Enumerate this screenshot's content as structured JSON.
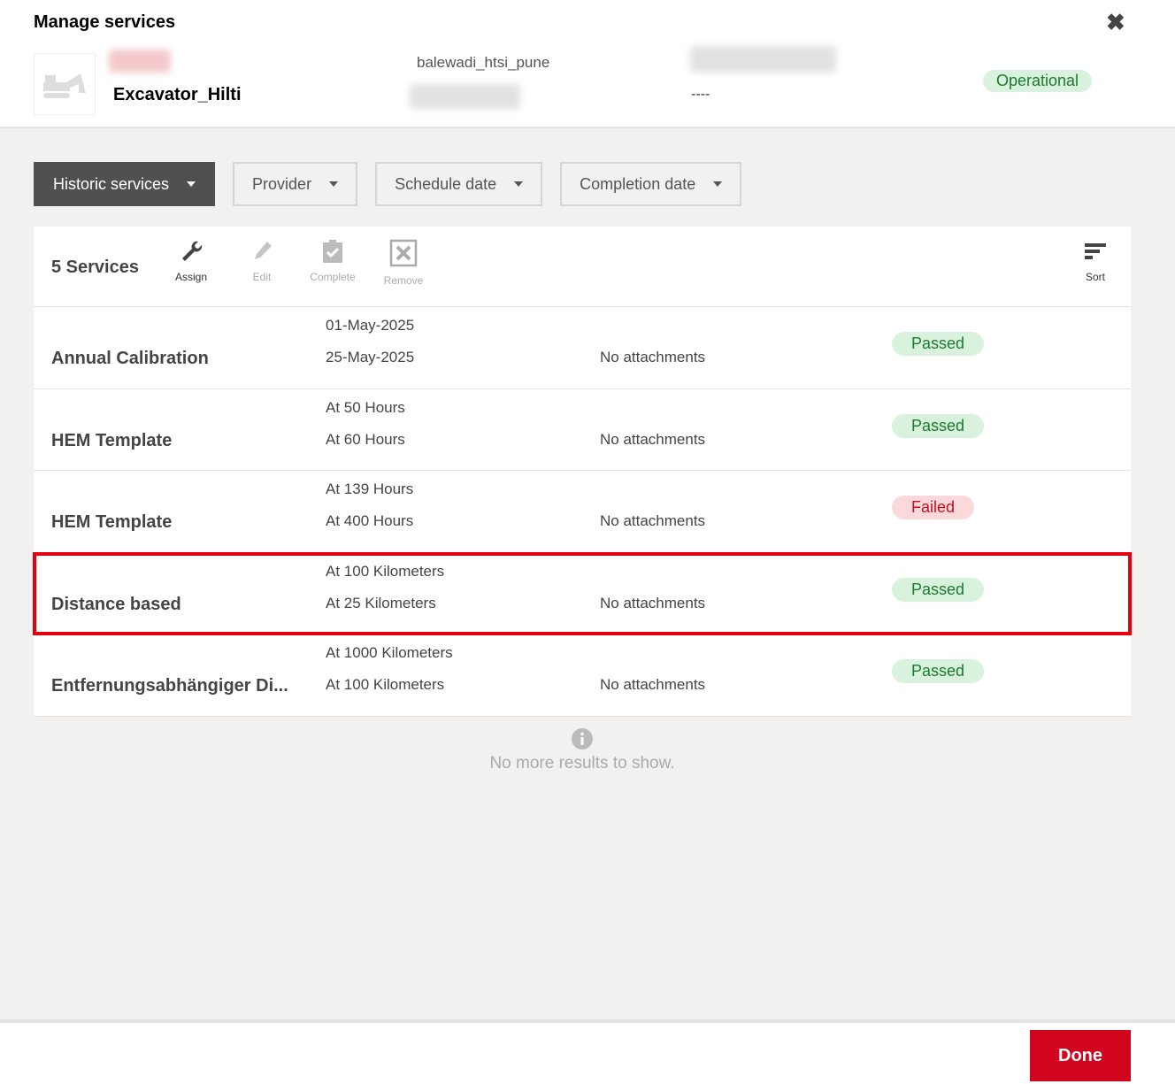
{
  "header": {
    "title": "Manage services",
    "asset_name": "Excavator_Hilti",
    "location": "balewadi_htsi_pune",
    "placeholder_value": "----",
    "status": "Operational"
  },
  "filters": [
    {
      "label": "Historic services"
    },
    {
      "label": "Provider"
    },
    {
      "label": "Schedule date"
    },
    {
      "label": "Completion date"
    }
  ],
  "toolbar": {
    "count": "5 Services",
    "assign": "Assign",
    "edit": "Edit",
    "complete": "Complete",
    "remove": "Remove",
    "sort": "Sort"
  },
  "rows": [
    {
      "name": "Annual Calibration",
      "line1": "01-May-2025",
      "line2": "25-May-2025",
      "attachments": "No attachments",
      "status": "Passed"
    },
    {
      "name": "HEM Template",
      "line1": "At 50 Hours",
      "line2": "At 60 Hours",
      "attachments": "No attachments",
      "status": "Passed"
    },
    {
      "name": "HEM Template",
      "line1": "At 139 Hours",
      "line2": "At 400 Hours",
      "attachments": "No attachments",
      "status": "Failed"
    },
    {
      "name": "Distance based",
      "line1": "At 100 Kilometers",
      "line2": "At 25 Kilometers",
      "attachments": "No attachments",
      "status": "Passed"
    },
    {
      "name": "Entfernungsabhängiger Di...",
      "line1": "At 1000 Kilometers",
      "line2": "At 100 Kilometers",
      "attachments": "No attachments",
      "status": "Passed"
    }
  ],
  "no_more": "No more results to show.",
  "footer": {
    "done": "Done"
  },
  "colors": {
    "accent": "#d2051e",
    "passed": "#d9f2dd",
    "failed": "#fbd9da",
    "highlight": "#e3000f"
  }
}
